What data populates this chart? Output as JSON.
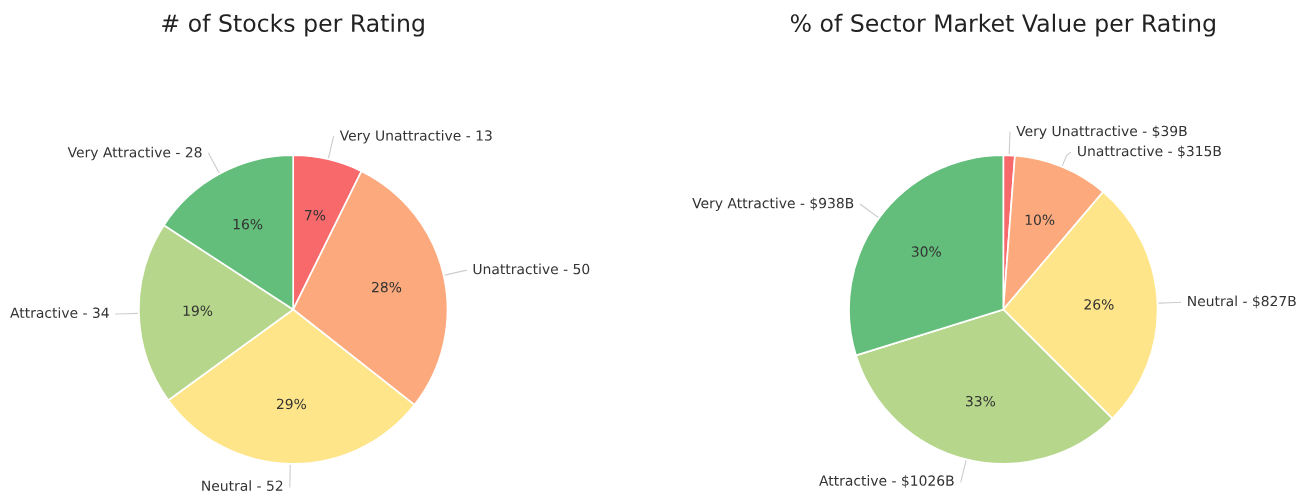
{
  "chart_data": [
    {
      "type": "pie",
      "title": "# of Stocks per Rating",
      "categories": [
        "Very Unattractive - 13",
        "Unattractive - 50",
        "Neutral - 52",
        "Attractive - 34",
        "Very Attractive - 28"
      ],
      "values": [
        7.3,
        28.3,
        29.4,
        19.2,
        15.8
      ],
      "value_labels": [
        "7%",
        "28%",
        "29%",
        "19%",
        "16%"
      ],
      "colors": [
        "#f8696b",
        "#fcaa7d",
        "#ffe58a",
        "#b5d68b",
        "#63be7b"
      ]
    },
    {
      "type": "pie",
      "title": "% of Sector Market Value per Rating",
      "categories": [
        "Very Unattractive - $39B",
        "Unattractive - $315B",
        "Neutral - $827B",
        "Attractive - $1026B",
        "Very Attractive - $938B"
      ],
      "values": [
        1.2,
        10.0,
        26.3,
        32.7,
        29.8
      ],
      "value_labels": [
        null,
        "10%",
        "26%",
        "33%",
        "30%"
      ],
      "colors": [
        "#f8696b",
        "#fcaa7d",
        "#ffe58a",
        "#b5d68b",
        "#63be7b"
      ]
    }
  ]
}
